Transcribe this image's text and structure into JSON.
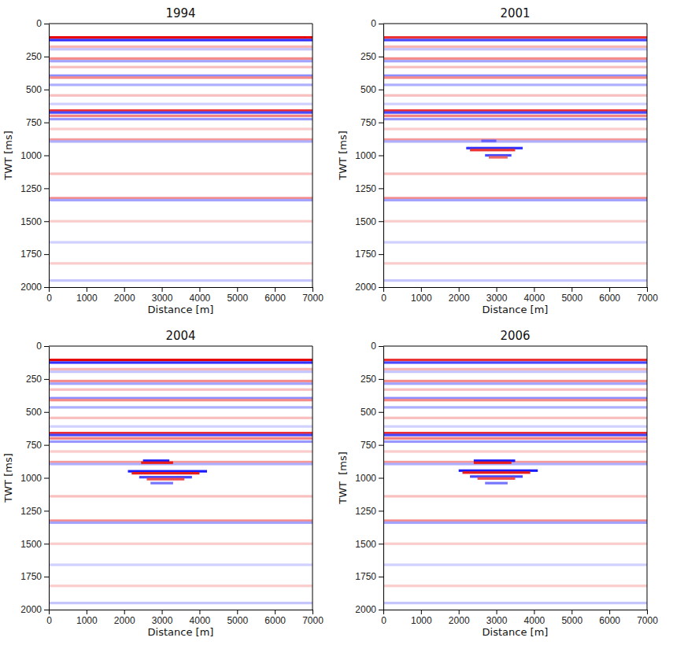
{
  "chart_data": [
    {
      "type": "seismic",
      "title": "1994",
      "xlabel": "Distance [m]",
      "ylabel": "TWT [ms]",
      "xlim": [
        0,
        7000
      ],
      "ylim": [
        0,
        2000
      ],
      "xticks": [
        0,
        1000,
        2000,
        3000,
        4000,
        5000,
        6000,
        7000
      ],
      "yticks": [
        0,
        250,
        500,
        750,
        1000,
        1250,
        1500,
        1750,
        2000
      ],
      "clim": [
        -1,
        1
      ],
      "reflectors": {
        "x0": [
          0,
          0,
          0,
          0,
          0,
          0,
          0,
          0,
          0,
          0,
          0,
          0,
          0,
          0,
          0,
          0,
          0,
          0,
          0,
          0,
          0,
          0,
          0,
          0,
          0,
          0
        ],
        "x1": [
          7000,
          7000,
          7000,
          7000,
          7000,
          7000,
          7000,
          7000,
          7000,
          7000,
          7000,
          7000,
          7000,
          7000,
          7000,
          7000,
          7000,
          7000,
          7000,
          7000,
          7000,
          7000,
          7000,
          7000,
          7000,
          7000
        ],
        "twt": [
          105,
          125,
          175,
          195,
          265,
          285,
          330,
          395,
          410,
          465,
          545,
          610,
          660,
          675,
          700,
          725,
          800,
          880,
          895,
          1140,
          1325,
          1340,
          1500,
          1660,
          1820,
          1950
        ],
        "amplitude": [
          1.0,
          -0.9,
          0.3,
          -0.25,
          0.45,
          -0.4,
          0.25,
          -0.5,
          0.45,
          -0.35,
          0.25,
          -0.2,
          0.8,
          -0.8,
          0.5,
          -0.45,
          0.2,
          0.4,
          -0.35,
          0.25,
          0.45,
          -0.4,
          0.2,
          -0.2,
          0.2,
          -0.25
        ]
      }
    },
    {
      "type": "seismic",
      "title": "2001",
      "xlabel": "Distance [m]",
      "ylabel": "TWT [ms]",
      "xlim": [
        0,
        7000
      ],
      "ylim": [
        0,
        2000
      ],
      "xticks": [
        0,
        1000,
        2000,
        3000,
        4000,
        5000,
        6000,
        7000
      ],
      "yticks": [
        0,
        250,
        500,
        750,
        1000,
        1250,
        1500,
        1750,
        2000
      ],
      "clim": [
        -1,
        1
      ],
      "reflectors": {
        "x0": [
          0,
          0,
          0,
          0,
          0,
          0,
          0,
          0,
          0,
          0,
          0,
          0,
          0,
          0,
          0,
          0,
          0,
          0,
          0,
          0,
          0,
          0,
          0,
          0,
          0,
          0,
          2600,
          2200,
          2300,
          2700,
          2800
        ],
        "x1": [
          7000,
          7000,
          7000,
          7000,
          7000,
          7000,
          7000,
          7000,
          7000,
          7000,
          7000,
          7000,
          7000,
          7000,
          7000,
          7000,
          7000,
          7000,
          7000,
          7000,
          7000,
          7000,
          7000,
          7000,
          7000,
          7000,
          3000,
          3700,
          3500,
          3400,
          3300
        ],
        "twt": [
          105,
          125,
          175,
          195,
          265,
          285,
          330,
          395,
          410,
          465,
          545,
          610,
          660,
          675,
          700,
          725,
          800,
          880,
          895,
          1140,
          1325,
          1340,
          1500,
          1660,
          1820,
          1950,
          890,
          945,
          960,
          1000,
          1015
        ],
        "amplitude": [
          0.8,
          -0.8,
          0.3,
          -0.25,
          0.45,
          -0.4,
          0.25,
          -0.5,
          0.45,
          -0.35,
          0.25,
          -0.2,
          0.8,
          -0.8,
          0.5,
          -0.45,
          0.2,
          0.4,
          -0.35,
          0.25,
          0.45,
          -0.4,
          0.2,
          -0.2,
          0.2,
          -0.25,
          -0.7,
          -0.9,
          0.8,
          -0.8,
          0.6
        ]
      }
    },
    {
      "type": "seismic",
      "title": "2004",
      "xlabel": "Distance [m]",
      "ylabel": "TWT [ms]",
      "xlim": [
        0,
        7000
      ],
      "ylim": [
        0,
        2000
      ],
      "xticks": [
        0,
        1000,
        2000,
        3000,
        4000,
        5000,
        6000,
        7000
      ],
      "yticks": [
        0,
        250,
        500,
        750,
        1000,
        1250,
        1500,
        1750,
        2000
      ],
      "clim": [
        -1,
        1
      ],
      "reflectors": {
        "x0": [
          0,
          0,
          0,
          0,
          0,
          0,
          0,
          0,
          0,
          0,
          0,
          0,
          0,
          0,
          0,
          0,
          0,
          0,
          0,
          0,
          0,
          0,
          0,
          0,
          0,
          0,
          2500,
          2450,
          2100,
          2200,
          2400,
          2600,
          2700
        ],
        "x1": [
          7000,
          7000,
          7000,
          7000,
          7000,
          7000,
          7000,
          7000,
          7000,
          7000,
          7000,
          7000,
          7000,
          7000,
          7000,
          7000,
          7000,
          7000,
          7000,
          7000,
          7000,
          7000,
          7000,
          7000,
          7000,
          7000,
          3200,
          3300,
          4200,
          4000,
          3800,
          3600,
          3300
        ],
        "twt": [
          105,
          125,
          175,
          195,
          265,
          285,
          330,
          395,
          410,
          465,
          545,
          610,
          660,
          675,
          700,
          725,
          800,
          880,
          895,
          1140,
          1325,
          1340,
          1500,
          1660,
          1820,
          1950,
          870,
          885,
          950,
          965,
          995,
          1010,
          1040
        ],
        "amplitude": [
          1.0,
          -0.9,
          0.3,
          -0.25,
          0.45,
          -0.4,
          0.25,
          -0.5,
          0.45,
          -0.35,
          0.25,
          -0.2,
          0.8,
          -0.8,
          0.5,
          -0.45,
          0.2,
          0.4,
          -0.35,
          0.25,
          0.45,
          -0.4,
          0.2,
          -0.2,
          0.2,
          -0.25,
          -1.0,
          0.9,
          -1.0,
          0.9,
          -0.8,
          0.7,
          -0.6
        ]
      }
    },
    {
      "type": "seismic",
      "title": "2006",
      "xlabel": "Distance [m]",
      "ylabel": "TWT  [ms]",
      "xlim": [
        0,
        7000
      ],
      "ylim": [
        0,
        2000
      ],
      "xticks": [
        0,
        1000,
        2000,
        3000,
        4000,
        5000,
        6000,
        7000
      ],
      "yticks": [
        0,
        250,
        500,
        750,
        1000,
        1250,
        1500,
        1750,
        2000
      ],
      "clim": [
        -1,
        1
      ],
      "reflectors": {
        "x0": [
          0,
          0,
          0,
          0,
          0,
          0,
          0,
          0,
          0,
          0,
          0,
          0,
          0,
          0,
          0,
          0,
          0,
          0,
          0,
          0,
          0,
          0,
          0,
          0,
          0,
          0,
          2400,
          2400,
          2000,
          2100,
          2300,
          2500,
          2700
        ],
        "x1": [
          7000,
          7000,
          7000,
          7000,
          7000,
          7000,
          7000,
          7000,
          7000,
          7000,
          7000,
          7000,
          7000,
          7000,
          7000,
          7000,
          7000,
          7000,
          7000,
          7000,
          7000,
          7000,
          7000,
          7000,
          7000,
          7000,
          3500,
          3400,
          4100,
          3900,
          3700,
          3500,
          3300
        ],
        "twt": [
          105,
          125,
          175,
          195,
          265,
          285,
          330,
          395,
          410,
          465,
          545,
          610,
          660,
          675,
          700,
          725,
          800,
          880,
          895,
          1140,
          1325,
          1340,
          1500,
          1660,
          1820,
          1950,
          870,
          885,
          945,
          960,
          990,
          1005,
          1040
        ],
        "amplitude": [
          0.8,
          -0.8,
          0.3,
          -0.25,
          0.45,
          -0.4,
          0.25,
          -0.5,
          0.45,
          -0.35,
          0.25,
          -0.2,
          0.8,
          -0.8,
          0.5,
          -0.45,
          0.2,
          0.4,
          -0.35,
          0.25,
          0.45,
          -0.4,
          0.2,
          -0.2,
          0.2,
          -0.25,
          -1.0,
          0.9,
          -1.0,
          0.9,
          -0.8,
          0.7,
          -0.6
        ]
      }
    }
  ]
}
